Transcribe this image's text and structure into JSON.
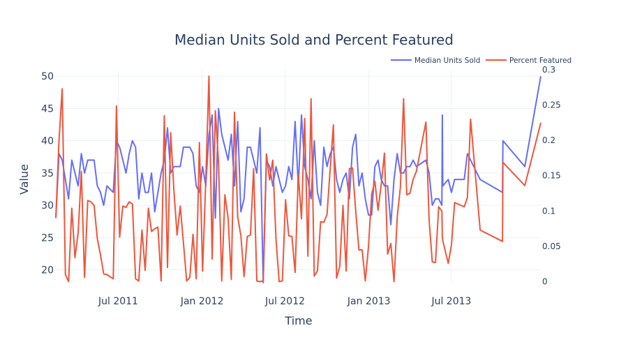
{
  "chart_data": {
    "type": "line",
    "title": "Median Units Sold and Percent Featured",
    "xlabel": "Time",
    "ylabel": "Value",
    "y2label": "",
    "legend_position": "top-right",
    "grid": true,
    "xlim": [
      "2011-02-14",
      "2014-01-13"
    ],
    "ylim": [
      18,
      51
    ],
    "y2lim": [
      -0.0015,
      0.3
    ],
    "x_ticks": [
      {
        "date": "2011-07-01",
        "label": "Jul 2011"
      },
      {
        "date": "2012-01-01",
        "label": "Jan 2012"
      },
      {
        "date": "2012-07-01",
        "label": "Jul 2012"
      },
      {
        "date": "2013-01-01",
        "label": "Jan 2013"
      },
      {
        "date": "2013-07-01",
        "label": "Jul 2013"
      }
    ],
    "y_ticks": [
      20,
      25,
      30,
      35,
      40,
      45,
      50
    ],
    "y_tick_labels": [
      "20",
      "25",
      "30",
      "35",
      "40",
      "45",
      "50"
    ],
    "y2_ticks": [
      0,
      0.05,
      0.1,
      0.15,
      0.2,
      0.25,
      0.3
    ],
    "y2_tick_labels": [
      "0",
      "0.05",
      "0.1",
      "0.15",
      "0.2",
      "0.25",
      "0.3"
    ],
    "series": [
      {
        "name": "Median Units Sold",
        "axis": "left",
        "color": "#636efa",
        "points": [
          [
            "2011-02-14",
            28
          ],
          [
            "2011-02-21",
            38
          ],
          [
            "2011-02-28",
            37
          ],
          [
            "2011-03-07",
            34
          ],
          [
            "2011-03-14",
            31
          ],
          [
            "2011-03-21",
            37
          ],
          [
            "2011-03-28",
            35
          ],
          [
            "2011-04-04",
            33
          ],
          [
            "2011-04-11",
            38
          ],
          [
            "2011-04-18",
            35
          ],
          [
            "2011-04-25",
            37
          ],
          [
            "2011-05-02",
            37
          ],
          [
            "2011-05-09",
            37
          ],
          [
            "2011-05-16",
            33
          ],
          [
            "2011-05-23",
            32
          ],
          [
            "2011-05-30",
            30
          ],
          [
            "2011-06-06",
            33
          ],
          [
            "2011-06-13",
            32.5
          ],
          [
            "2011-06-20",
            32
          ],
          [
            "2011-06-27",
            40
          ],
          [
            "2011-07-04",
            39
          ],
          [
            "2011-07-11",
            37
          ],
          [
            "2011-07-18",
            35
          ],
          [
            "2011-07-25",
            38
          ],
          [
            "2011-08-01",
            40
          ],
          [
            "2011-08-08",
            39
          ],
          [
            "2011-08-15",
            31
          ],
          [
            "2011-08-22",
            35
          ],
          [
            "2011-08-29",
            32
          ],
          [
            "2011-09-05",
            32
          ],
          [
            "2011-09-12",
            35
          ],
          [
            "2011-09-19",
            29
          ],
          [
            "2011-09-26",
            32
          ],
          [
            "2011-10-03",
            35
          ],
          [
            "2011-10-10",
            37
          ],
          [
            "2011-10-17",
            42
          ],
          [
            "2011-10-24",
            35
          ],
          [
            "2011-10-31",
            36
          ],
          [
            "2011-11-07",
            36
          ],
          [
            "2011-11-14",
            36
          ],
          [
            "2011-11-21",
            39
          ],
          [
            "2011-11-28",
            39
          ],
          [
            "2011-12-05",
            39
          ],
          [
            "2011-12-12",
            38
          ],
          [
            "2011-12-19",
            33
          ],
          [
            "2011-12-26",
            32
          ],
          [
            "2012-01-02",
            36
          ],
          [
            "2012-01-09",
            33
          ],
          [
            "2012-01-16",
            41
          ],
          [
            "2012-01-23",
            44
          ],
          [
            "2012-01-30",
            28
          ],
          [
            "2012-02-06",
            45
          ],
          [
            "2012-02-13",
            41
          ],
          [
            "2012-02-20",
            39
          ],
          [
            "2012-02-27",
            37
          ],
          [
            "2012-03-05",
            41
          ],
          [
            "2012-03-12",
            33
          ],
          [
            "2012-03-19",
            43
          ],
          [
            "2012-03-26",
            29
          ],
          [
            "2012-04-02",
            31
          ],
          [
            "2012-04-09",
            39
          ],
          [
            "2012-04-16",
            39
          ],
          [
            "2012-04-23",
            37
          ],
          [
            "2012-04-30",
            35
          ],
          [
            "2012-05-07",
            42
          ],
          [
            "2012-05-14",
            18
          ],
          [
            "2012-05-21",
            37
          ],
          [
            "2012-05-28",
            36
          ],
          [
            "2012-06-04",
            33
          ],
          [
            "2012-06-11",
            36
          ],
          [
            "2012-06-18",
            34
          ],
          [
            "2012-06-25",
            32
          ],
          [
            "2012-07-02",
            33
          ],
          [
            "2012-07-09",
            36
          ],
          [
            "2012-07-16",
            34
          ],
          [
            "2012-07-23",
            43
          ],
          [
            "2012-07-30",
            33
          ],
          [
            "2012-08-06",
            44
          ],
          [
            "2012-08-13",
            36
          ],
          [
            "2012-08-20",
            34
          ],
          [
            "2012-08-27",
            31
          ],
          [
            "2012-09-03",
            40
          ],
          [
            "2012-09-10",
            32
          ],
          [
            "2012-09-17",
            30
          ],
          [
            "2012-09-24",
            39
          ],
          [
            "2012-10-01",
            36
          ],
          [
            "2012-10-08",
            38
          ],
          [
            "2012-10-15",
            39
          ],
          [
            "2012-10-22",
            34
          ],
          [
            "2012-10-29",
            32
          ],
          [
            "2012-11-05",
            34
          ],
          [
            "2012-11-12",
            35
          ],
          [
            "2012-11-19",
            31
          ],
          [
            "2012-11-26",
            39
          ],
          [
            "2012-12-03",
            41
          ],
          [
            "2012-12-10",
            33
          ],
          [
            "2012-12-17",
            35
          ],
          [
            "2012-12-24",
            31
          ],
          [
            "2012-12-31",
            28.5
          ],
          [
            "2013-01-07",
            28.5
          ],
          [
            "2013-01-14",
            36
          ],
          [
            "2013-01-21",
            37
          ],
          [
            "2013-01-28",
            34
          ],
          [
            "2013-02-04",
            33
          ],
          [
            "2013-02-11",
            33
          ],
          [
            "2013-02-18",
            27
          ],
          [
            "2013-02-25",
            34
          ],
          [
            "2013-03-04",
            38
          ],
          [
            "2013-03-11",
            35
          ],
          [
            "2013-03-18",
            35
          ],
          [
            "2013-03-25",
            36
          ],
          [
            "2013-04-01",
            36
          ],
          [
            "2013-04-08",
            37
          ],
          [
            "2013-04-15",
            36
          ],
          [
            "2013-05-06",
            37
          ],
          [
            "2013-05-13",
            35
          ],
          [
            "2013-05-20",
            30
          ],
          [
            "2013-05-27",
            31
          ],
          [
            "2013-06-03",
            31
          ],
          [
            "2013-06-10",
            30
          ],
          [
            "2013-06-11",
            44
          ],
          [
            "2013-06-12",
            33
          ],
          [
            "2013-06-24",
            34
          ],
          [
            "2013-07-01",
            32
          ],
          [
            "2013-07-08",
            34
          ],
          [
            "2013-07-29",
            34
          ],
          [
            "2013-08-05",
            38
          ],
          [
            "2013-08-12",
            37
          ],
          [
            "2013-09-02",
            34
          ],
          [
            "2013-10-21",
            32
          ],
          [
            "2013-10-22",
            40
          ],
          [
            "2013-12-09",
            36
          ],
          [
            "2014-01-13",
            50
          ]
        ]
      },
      {
        "name": "Percent Featured",
        "axis": "right",
        "color": "#ef553b",
        "points": [
          [
            "2011-02-14",
            0.09
          ],
          [
            "2011-02-21",
            0.2
          ],
          [
            "2011-02-28",
            0.273
          ],
          [
            "2011-03-07",
            0.01
          ],
          [
            "2011-03-14",
            0
          ],
          [
            "2011-03-21",
            0.104
          ],
          [
            "2011-03-28",
            0.034
          ],
          [
            "2011-04-04",
            0.069
          ],
          [
            "2011-04-11",
            0.156
          ],
          [
            "2011-04-18",
            0.006
          ],
          [
            "2011-04-25",
            0.115
          ],
          [
            "2011-05-02",
            0.113
          ],
          [
            "2011-05-09",
            0.108
          ],
          [
            "2011-05-16",
            0.061
          ],
          [
            "2011-05-23",
            0.038
          ],
          [
            "2011-05-30",
            0.011
          ],
          [
            "2011-06-06",
            0.01
          ],
          [
            "2011-06-13",
            0.007
          ],
          [
            "2011-06-20",
            0.004
          ],
          [
            "2011-06-27",
            0.249
          ],
          [
            "2011-07-04",
            0.063
          ],
          [
            "2011-07-11",
            0.107
          ],
          [
            "2011-07-18",
            0.105
          ],
          [
            "2011-07-25",
            0.113
          ],
          [
            "2011-08-01",
            0.11
          ],
          [
            "2011-08-08",
            0.004
          ],
          [
            "2011-08-15",
            0.001
          ],
          [
            "2011-08-22",
            0.073
          ],
          [
            "2011-08-29",
            0.016
          ],
          [
            "2011-09-05",
            0.104
          ],
          [
            "2011-09-12",
            0.071
          ],
          [
            "2011-09-19",
            0.075
          ],
          [
            "2011-09-26",
            0.077
          ],
          [
            "2011-10-03",
            0.001
          ],
          [
            "2011-10-10",
            0.235
          ],
          [
            "2011-10-17",
            0.02
          ],
          [
            "2011-10-24",
            0.211
          ],
          [
            "2011-10-31",
            0.13
          ],
          [
            "2011-11-07",
            0.066
          ],
          [
            "2011-11-14",
            0.107
          ],
          [
            "2011-11-21",
            0.055
          ],
          [
            "2011-11-28",
            0.001
          ],
          [
            "2011-12-05",
            0.006
          ],
          [
            "2011-12-12",
            0.067
          ],
          [
            "2011-12-19",
            0.004
          ],
          [
            "2011-12-26",
            0.197
          ],
          [
            "2012-01-02",
            0.015
          ],
          [
            "2012-01-09",
            0.144
          ],
          [
            "2012-01-16",
            0.291
          ],
          [
            "2012-01-23",
            0.032
          ],
          [
            "2012-01-30",
            0.242
          ],
          [
            "2012-02-06",
            0.168
          ],
          [
            "2012-02-13",
            0.001
          ],
          [
            "2012-02-20",
            0.123
          ],
          [
            "2012-02-27",
            0.09
          ],
          [
            "2012-03-05",
            0.003
          ],
          [
            "2012-03-12",
            0.24
          ],
          [
            "2012-03-19",
            0.092
          ],
          [
            "2012-03-26",
            0.065
          ],
          [
            "2012-04-02",
            0.007
          ],
          [
            "2012-04-09",
            0.064
          ],
          [
            "2012-04-16",
            0.066
          ],
          [
            "2012-04-23",
            0.16
          ],
          [
            "2012-04-30",
            0.001
          ],
          [
            "2012-05-07",
            0
          ],
          [
            "2012-05-14",
            0.001
          ],
          [
            "2012-05-21",
            0.181
          ],
          [
            "2012-05-28",
            0.144
          ],
          [
            "2012-06-04",
            0.172
          ],
          [
            "2012-06-11",
            0.061
          ],
          [
            "2012-06-18",
            0
          ],
          [
            "2012-06-25",
            0.001
          ],
          [
            "2012-07-02",
            0.116
          ],
          [
            "2012-07-09",
            0.065
          ],
          [
            "2012-07-16",
            0.064
          ],
          [
            "2012-07-23",
            0.013
          ],
          [
            "2012-07-30",
            0.152
          ],
          [
            "2012-08-06",
            0.089
          ],
          [
            "2012-08-13",
            0.231
          ],
          [
            "2012-08-20",
            0.036
          ],
          [
            "2012-08-27",
            0.259
          ],
          [
            "2012-09-03",
            0.008
          ],
          [
            "2012-09-10",
            0.015
          ],
          [
            "2012-09-17",
            0.085
          ],
          [
            "2012-09-24",
            0.084
          ],
          [
            "2012-10-01",
            0.095
          ],
          [
            "2012-10-08",
            0.16
          ],
          [
            "2012-10-15",
            0.222
          ],
          [
            "2012-10-22",
            0.005
          ],
          [
            "2012-10-29",
            0.022
          ],
          [
            "2012-11-05",
            0.108
          ],
          [
            "2012-11-12",
            0.015
          ],
          [
            "2012-11-19",
            0.16
          ],
          [
            "2012-11-26",
            0.161
          ],
          [
            "2012-12-03",
            0.1
          ],
          [
            "2012-12-10",
            0.045
          ],
          [
            "2012-12-17",
            0.045
          ],
          [
            "2012-12-24",
            0.001
          ],
          [
            "2012-12-31",
            0.05
          ],
          [
            "2013-01-07",
            0.124
          ],
          [
            "2013-01-14",
            0.142
          ],
          [
            "2013-01-21",
            0.101
          ],
          [
            "2013-01-28",
            0.138
          ],
          [
            "2013-02-04",
            0.182
          ],
          [
            "2013-02-11",
            0.039
          ],
          [
            "2013-02-18",
            0.054
          ],
          [
            "2013-02-25",
            0
          ],
          [
            "2013-03-04",
            0.091
          ],
          [
            "2013-03-11",
            0.134
          ],
          [
            "2013-03-18",
            0.259
          ],
          [
            "2013-03-25",
            0.123
          ],
          [
            "2013-04-01",
            0.125
          ],
          [
            "2013-04-08",
            0.145
          ],
          [
            "2013-04-15",
            0.156
          ],
          [
            "2013-05-06",
            0.226
          ],
          [
            "2013-05-13",
            0.087
          ],
          [
            "2013-05-20",
            0.028
          ],
          [
            "2013-05-27",
            0.027
          ],
          [
            "2013-06-03",
            0.106
          ],
          [
            "2013-06-10",
            0.1
          ],
          [
            "2013-06-11",
            0.063
          ],
          [
            "2013-06-12",
            0.058
          ],
          [
            "2013-06-24",
            0.026
          ],
          [
            "2013-07-01",
            0.052
          ],
          [
            "2013-07-08",
            0.112
          ],
          [
            "2013-07-29",
            0.106
          ],
          [
            "2013-08-05",
            0.119
          ],
          [
            "2013-08-12",
            0.23
          ],
          [
            "2013-09-02",
            0.073
          ],
          [
            "2013-10-21",
            0.057
          ],
          [
            "2013-10-22",
            0.169
          ],
          [
            "2013-12-09",
            0.136
          ],
          [
            "2014-01-13",
            0.225
          ]
        ]
      }
    ]
  }
}
